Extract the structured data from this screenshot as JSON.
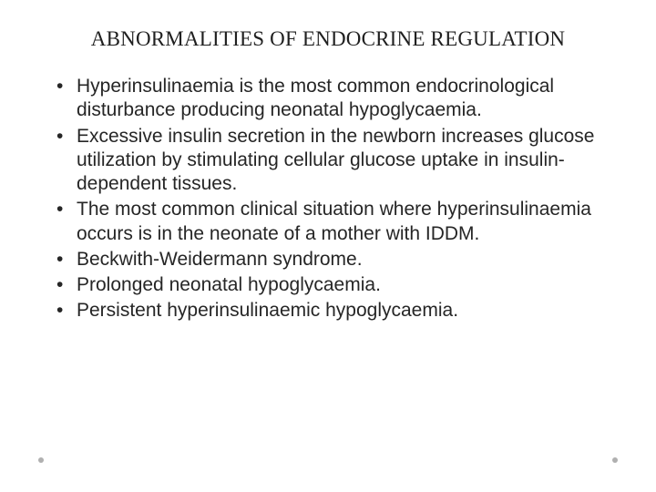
{
  "slide": {
    "title": "ABNORMALITIES OF ENDOCRINE REGULATION",
    "title_color": "#202020",
    "title_fontsize": 23,
    "title_font": "Times New Roman",
    "body_fontsize": 21,
    "body_color": "#262626",
    "body_font": "Arial",
    "background_color": "#ffffff",
    "bullets": [
      "Hyperinsulinaemia is the most common endocrinological disturbance producing neonatal hypoglycaemia.",
      "Excessive insulin secretion in the newborn increases glucose utilization by stimulating cellular glucose uptake in insulin-dependent tissues.",
      "The most common clinical situation where hyperinsulinaemia occurs is in the neonate of a mother with IDDM.",
      "Beckwith-Weidermann syndrome.",
      "Prolonged  neonatal hypoglycaemia.",
      "Persistent hyperinsulinaemic hypoglycaemia."
    ],
    "corner_dot_color": "#b0b0b0"
  }
}
